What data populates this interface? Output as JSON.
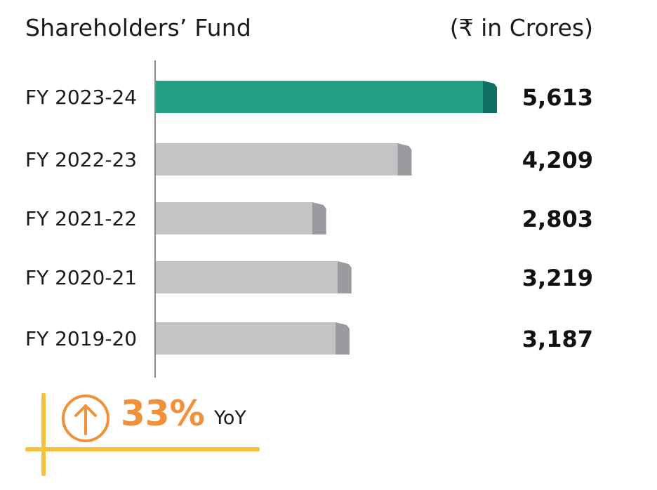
{
  "chart_data": {
    "type": "bar",
    "orientation": "horizontal",
    "title": "Shareholders’ Fund",
    "unit": "(₹ in Crores)",
    "categories": [
      "FY 2023-24",
      "FY 2022-23",
      "FY 2021-22",
      "FY 2020-21",
      "FY 2019-20"
    ],
    "values": [
      5613,
      4209,
      2803,
      3219,
      3187
    ],
    "value_labels": [
      "5,613",
      "4,209",
      "2,803",
      "3,219",
      "3,187"
    ],
    "highlight_index": 0,
    "colors": {
      "highlight": "#22a085",
      "highlight_cap": "#0d6e62",
      "default": "#c3c4c6",
      "default_cap": "#9a9b9e",
      "axis": "#8a8a8a"
    },
    "grid": false,
    "legend": "none"
  },
  "callout": {
    "percent": "33%",
    "suffix": "YoY",
    "icon": "up-arrow-circle-icon",
    "accent_color": "#f0913a",
    "frame_color": "#f6c23e"
  }
}
